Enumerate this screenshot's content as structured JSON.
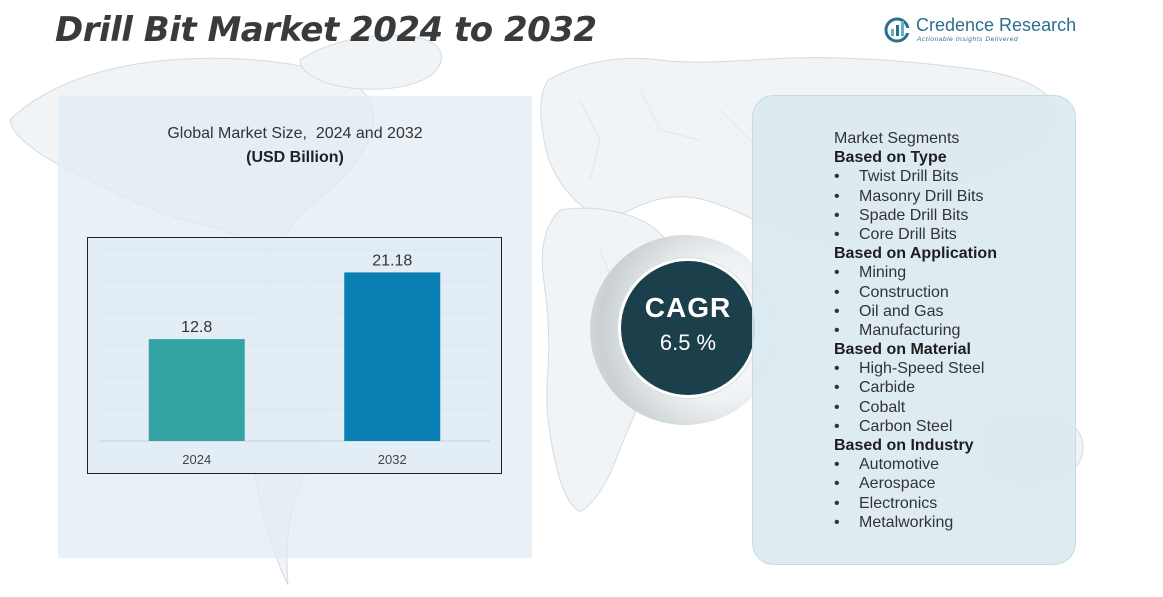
{
  "header": {
    "title": "Drill Bit Market 2024 to 2032"
  },
  "logo": {
    "name": "Credence Research",
    "tagline": "Actionable Insights Delivered"
  },
  "chart_data": {
    "type": "bar",
    "title": "Global Market Size,  2024 and 2032",
    "subtitle": "(USD Billion)",
    "categories": [
      "2024",
      "2032"
    ],
    "values": [
      12.8,
      21.18
    ],
    "data_labels": [
      "12.8",
      "21.18"
    ],
    "bar_colors": [
      "#34a3a3",
      "#0a7fb3"
    ],
    "ylim": [
      0,
      25
    ],
    "grid": true,
    "legend": "none"
  },
  "cagr": {
    "label": "CAGR",
    "value": "6.5 %"
  },
  "segments": {
    "heading": "Market Segments",
    "groups": [
      {
        "title": "Based on Type",
        "items": [
          "Twist Drill Bits",
          "Masonry Drill Bits",
          "Spade Drill Bits",
          "Core Drill Bits"
        ]
      },
      {
        "title": "Based on Application",
        "items": [
          "Mining",
          "Construction",
          "Oil and Gas",
          "Manufacturing"
        ]
      },
      {
        "title": "Based on Material",
        "items": [
          "High-Speed Steel",
          "Carbide",
          "Cobalt",
          "Carbon Steel"
        ]
      },
      {
        "title": "Based on Industry",
        "items": [
          "Automotive",
          "Aerospace",
          "Electronics",
          "Metalworking"
        ]
      }
    ],
    "bullet": "•"
  },
  "colors": {
    "cagr_circle": "#1c3f4c",
    "panel": "#e0ebf4",
    "brand": "#2b6f8c"
  }
}
